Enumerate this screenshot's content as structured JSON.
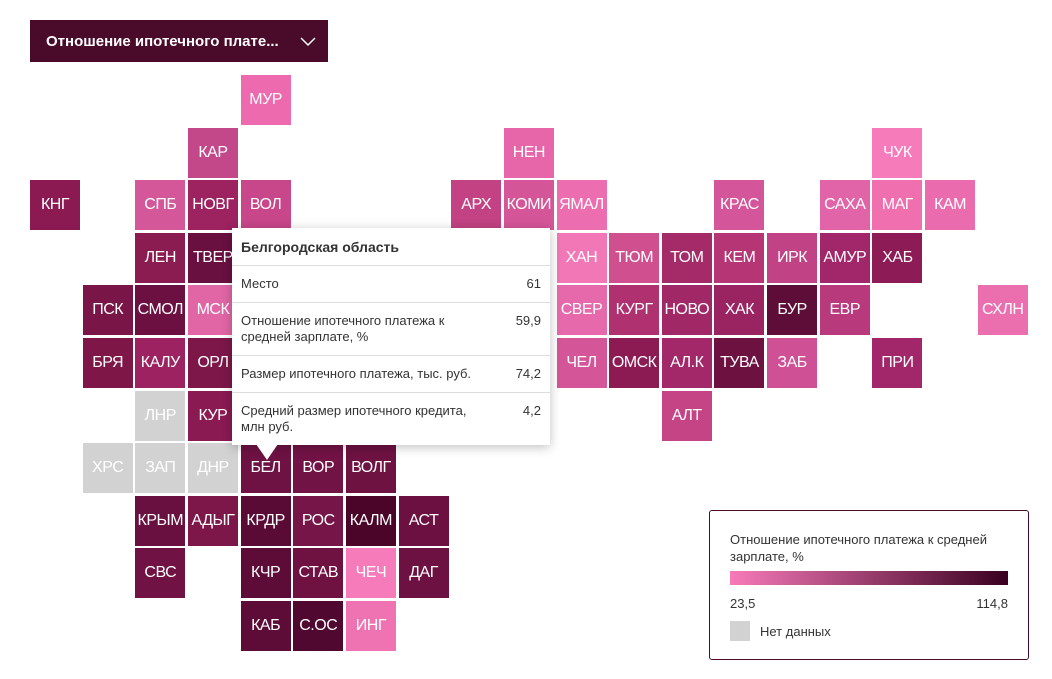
{
  "dropdown": {
    "label": "Отношение ипотечного плате..."
  },
  "tiles": [
    {
      "label": "МУР",
      "color": "#ee6aaf"
    },
    {
      "label": "КАР",
      "color": "#c2488a"
    },
    {
      "label": "НЕН",
      "color": "#e765a9"
    },
    {
      "label": "ЧУК",
      "color": "#f57bbb"
    },
    {
      "label": "КНГ",
      "color": "#8c1a52"
    },
    {
      "label": "СПБ",
      "color": "#d4579a"
    },
    {
      "label": "НОВГ",
      "color": "#9c2260"
    },
    {
      "label": "ВОЛ",
      "color": "#c8478a"
    },
    {
      "label": "АРХ",
      "color": "#c24283"
    },
    {
      "label": "КОМИ",
      "color": "#d55599"
    },
    {
      "label": "ЯМАЛ",
      "color": "#ec6eb0"
    },
    {
      "label": "КРАС",
      "color": "#d4559a"
    },
    {
      "label": "САХА",
      "color": "#e264a8"
    },
    {
      "label": "МАГ",
      "color": "#ef6faf"
    },
    {
      "label": "КАМ",
      "color": "#ea6cae"
    },
    {
      "label": "ЛЕН",
      "color": "#8a1c52"
    },
    {
      "label": "ТВЕР",
      "color": "#6a1040"
    },
    {
      "label": "ХАН",
      "color": "#f177b6"
    },
    {
      "label": "ТЮМ",
      "color": "#d0508f"
    },
    {
      "label": "ТОМ",
      "color": "#a52a68"
    },
    {
      "label": "КЕМ",
      "color": "#b53575"
    },
    {
      "label": "ИРК",
      "color": "#c14385"
    },
    {
      "label": "АМУР",
      "color": "#a1266a"
    },
    {
      "label": "ХАБ",
      "color": "#8d1b55"
    },
    {
      "label": "ПСК",
      "color": "#7a1548"
    },
    {
      "label": "СМОЛ",
      "color": "#6b1040"
    },
    {
      "label": "МСК",
      "color": "#e066a6"
    },
    {
      "label": "СВЕР",
      "color": "#e569ab"
    },
    {
      "label": "КУРГ",
      "color": "#b03170"
    },
    {
      "label": "НОВО",
      "color": "#a02866"
    },
    {
      "label": "ХАК",
      "color": "#9a2462"
    },
    {
      "label": "БУР",
      "color": "#5e0c38"
    },
    {
      "label": "ЕВР",
      "color": "#b83a7c"
    },
    {
      "label": "СХЛН",
      "color": "#eb6eaf"
    },
    {
      "label": "БРЯ",
      "color": "#7e1648"
    },
    {
      "label": "КАЛУ",
      "color": "#9c2262"
    },
    {
      "label": "ОРЛ",
      "color": "#7d1749"
    },
    {
      "label": "ЧЕЛ",
      "color": "#d45598"
    },
    {
      "label": "ОМСК",
      "color": "#8c1b54"
    },
    {
      "label": "АЛ.К",
      "color": "#a3286a"
    },
    {
      "label": "ТУВА",
      "color": "#6d1140"
    },
    {
      "label": "ЗАБ",
      "color": "#cf5095"
    },
    {
      "label": "ПРИ",
      "color": "#a2276a"
    },
    {
      "label": "ЛНР",
      "color": "#d2d2d2"
    },
    {
      "label": "КУР",
      "color": "#8a1a52"
    },
    {
      "label": "АЛТ",
      "color": "#c44486"
    },
    {
      "label": "ХРС",
      "color": "#d2d2d2"
    },
    {
      "label": "ЗАП",
      "color": "#d2d2d2"
    },
    {
      "label": "ДНР",
      "color": "#d2d2d2"
    },
    {
      "label": "БЕЛ",
      "color": "#6e1243"
    },
    {
      "label": "ВОР",
      "color": "#721345"
    },
    {
      "label": "ВОЛГ",
      "color": "#6e1242"
    },
    {
      "label": "КРЫМ",
      "color": "#6a1040"
    },
    {
      "label": "АДЫГ",
      "color": "#7d1749"
    },
    {
      "label": "КРДР",
      "color": "#5a0b35"
    },
    {
      "label": "РОС",
      "color": "#761547"
    },
    {
      "label": "КАЛМ",
      "color": "#4a0529"
    },
    {
      "label": "АСТ",
      "color": "#6b1040"
    },
    {
      "label": "СВС",
      "color": "#701243"
    },
    {
      "label": "КЧР",
      "color": "#5c0c37"
    },
    {
      "label": "СТАВ",
      "color": "#6f1242"
    },
    {
      "label": "ЧЕЧ",
      "color": "#f57bbb"
    },
    {
      "label": "ДАГ",
      "color": "#6c1141"
    },
    {
      "label": "КАБ",
      "color": "#5d0c37"
    },
    {
      "label": "С.ОС",
      "color": "#500730"
    },
    {
      "label": "ИНГ",
      "color": "#ef73b3"
    }
  ],
  "tooltip": {
    "title": "Белгородская область",
    "rows": [
      {
        "label": "Место",
        "value": "61"
      },
      {
        "label": "Отношение ипотечного платежа к средней зарплате, %",
        "value": "59,9"
      },
      {
        "label": "Размер ипотечного платежа, тыс. руб.",
        "value": "74,2"
      },
      {
        "label": "Средний размер ипотечного кредита, млн руб.",
        "value": "4,2"
      }
    ]
  },
  "legend": {
    "title": "Отношение ипотечного платежа к средней зарплате, %",
    "min": "23,5",
    "max": "114,8",
    "color_low": "#f77ab9",
    "color_high": "#3a0020",
    "no_data_color": "#d2d2d2",
    "no_data": "Нет данных"
  }
}
